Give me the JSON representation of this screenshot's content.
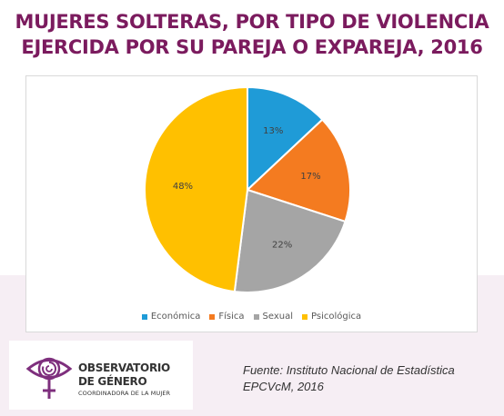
{
  "title_lines": [
    "MUJERES SOLTERAS, POR TIPO DE VIOLENCIA",
    "EJERCIDA POR SU PAREJA O EXPAREJA, 2016"
  ],
  "colors": {
    "title": "#7b1b5e",
    "logo": "#7e2f7d",
    "band": "#f6eef4"
  },
  "chart_data": {
    "type": "pie",
    "title": "MUJERES SOLTERAS, POR TIPO DE VIOLENCIA EJERCIDA POR SU PAREJA O EXPAREJA, 2016",
    "categories": [
      "Económica",
      "Física",
      "Sexual",
      "Psicológica"
    ],
    "values": [
      13,
      17,
      22,
      48
    ],
    "labels": [
      "13%",
      "17%",
      "22%",
      "48%"
    ],
    "colors": [
      "#1f9bd7",
      "#f47b20",
      "#a5a5a5",
      "#ffc000"
    ],
    "legend_position": "bottom"
  },
  "logo": {
    "line1": "OBSERVATORIO",
    "line2": "DE GÉNERO",
    "line3": "COORDINADORA DE LA MUJER",
    "icon": "eye-venus-icon"
  },
  "source": {
    "line1": "Fuente: Instituto Nacional de Estadística",
    "line2": "EPCVcM, 2016"
  }
}
